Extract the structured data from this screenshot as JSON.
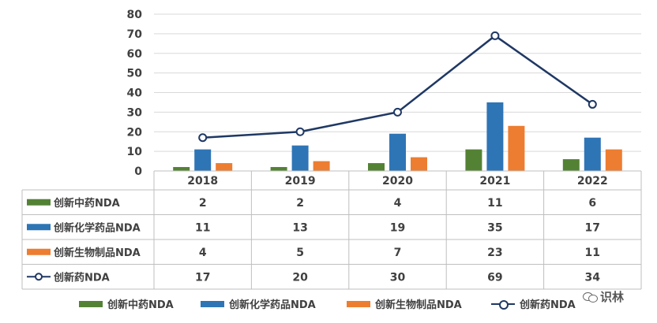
{
  "chart_data": {
    "type": "bar",
    "categories": [
      "2018",
      "2019",
      "2020",
      "2021",
      "2022"
    ],
    "ylim": [
      0,
      80
    ],
    "yticks": [
      0,
      10,
      20,
      30,
      40,
      50,
      60,
      70,
      80
    ],
    "grid": true,
    "legend_position": "bottom",
    "series": [
      {
        "name": "创新中药NDA",
        "kind": "bar",
        "color": "#548235",
        "values": [
          2,
          2,
          4,
          11,
          6
        ]
      },
      {
        "name": "创新化学药品NDA",
        "kind": "bar",
        "color": "#2e75b6",
        "values": [
          11,
          13,
          19,
          35,
          17
        ]
      },
      {
        "name": "创新生物制品NDA",
        "kind": "bar",
        "color": "#ed7d31",
        "values": [
          4,
          5,
          7,
          23,
          11
        ]
      },
      {
        "name": "创新药NDA",
        "kind": "line",
        "color": "#1f3864",
        "values": [
          17,
          20,
          30,
          69,
          34
        ]
      }
    ]
  },
  "watermark": {
    "text": "识林"
  }
}
